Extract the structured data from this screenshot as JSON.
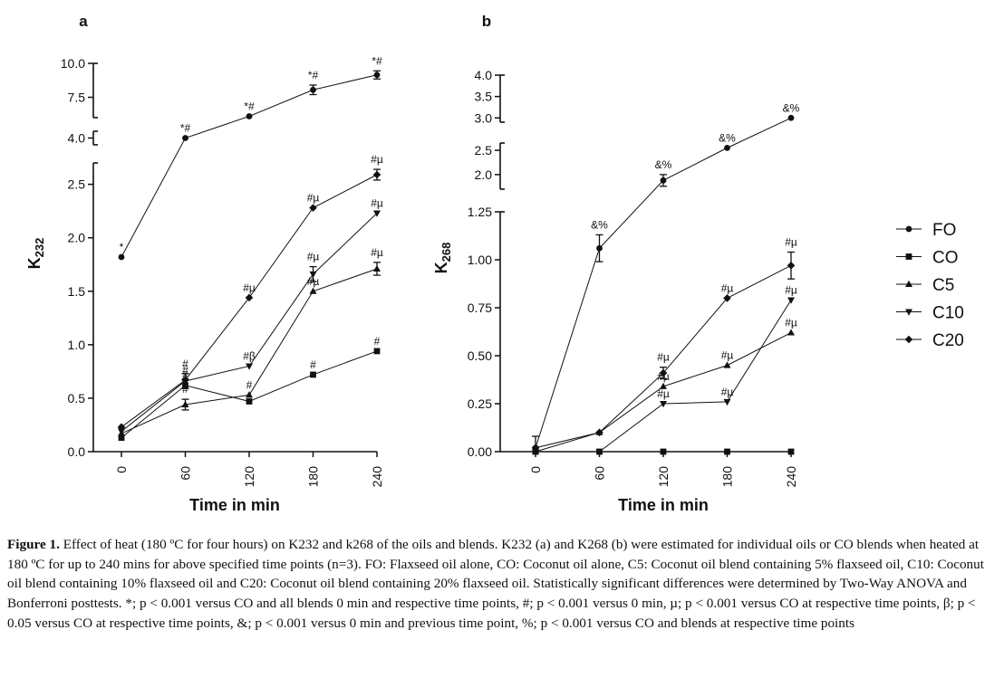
{
  "chart_data": [
    {
      "type": "line",
      "panel_label": "a",
      "xlabel": "Time in min",
      "ylabel": "K",
      "ylabel_sub": "232",
      "x_ticks": [
        "0",
        "60",
        "120",
        "180",
        "240"
      ],
      "x": [
        0,
        60,
        120,
        180,
        240
      ],
      "y_segments": [
        {
          "range": [
            0,
            2.7
          ],
          "ticks": [
            "0.0",
            "0.5",
            "1.0",
            "1.5",
            "2.0",
            "2.5"
          ]
        },
        {
          "range": [
            3.9,
            4.1
          ],
          "ticks": [
            "4.0"
          ]
        },
        {
          "range": [
            6.0,
            10.0
          ],
          "ticks": [
            "7.5",
            "10.0"
          ]
        }
      ],
      "series": [
        {
          "name": "FO",
          "marker": "circle",
          "values": [
            1.82,
            4.0,
            6.1,
            8.05,
            9.15
          ],
          "errors": [
            0,
            0,
            0,
            0.35,
            0.3
          ],
          "annotations": [
            "*",
            "*#",
            "*#",
            "*#",
            "*#"
          ]
        },
        {
          "name": "CO",
          "marker": "square",
          "values": [
            0.13,
            0.62,
            0.47,
            0.72,
            0.94
          ],
          "errors": [
            0,
            0,
            0,
            0,
            0
          ],
          "annotations": [
            "",
            "#",
            "",
            "#",
            "#"
          ]
        },
        {
          "name": "C5",
          "marker": "triangle-up",
          "values": [
            0.17,
            0.44,
            0.53,
            1.5,
            1.71
          ],
          "errors": [
            0,
            0.05,
            0,
            0,
            0.06
          ],
          "annotations": [
            "",
            "#",
            "#",
            "#µ",
            "#µ"
          ]
        },
        {
          "name": "C10",
          "marker": "triangle-down",
          "values": [
            0.19,
            0.66,
            0.8,
            1.66,
            2.23
          ],
          "errors": [
            0,
            0.07,
            0,
            0.07,
            0
          ],
          "annotations": [
            "",
            "#",
            "#β",
            "#µ",
            "#µ"
          ]
        },
        {
          "name": "C20",
          "marker": "diamond",
          "values": [
            0.23,
            0.67,
            1.44,
            2.28,
            2.59
          ],
          "errors": [
            0,
            0,
            0,
            0,
            0.05
          ],
          "annotations": [
            "",
            "#",
            "#µ",
            "#µ",
            "#µ"
          ]
        }
      ]
    },
    {
      "type": "line",
      "panel_label": "b",
      "xlabel": "Time in min",
      "ylabel": "K",
      "ylabel_sub": "268",
      "x_ticks": [
        "0",
        "60",
        "120",
        "180",
        "240"
      ],
      "x": [
        0,
        60,
        120,
        180,
        240
      ],
      "y_segments": [
        {
          "range": [
            0,
            1.25
          ],
          "ticks": [
            "0.00",
            "0.25",
            "0.50",
            "0.75",
            "1.00",
            "1.25"
          ]
        },
        {
          "range": [
            1.7,
            2.65
          ],
          "ticks": [
            "2.0",
            "2.5"
          ]
        },
        {
          "range": [
            2.9,
            4.0
          ],
          "ticks": [
            "3.0",
            "3.5",
            "4.0"
          ]
        }
      ],
      "series": [
        {
          "name": "FO",
          "marker": "circle",
          "values": [
            0.02,
            1.06,
            1.88,
            2.55,
            3.0
          ],
          "errors": [
            0,
            0.07,
            0.12,
            0,
            0
          ],
          "annotations": [
            "",
            "&%",
            "&%",
            "&%",
            "&%"
          ]
        },
        {
          "name": "CO",
          "marker": "square",
          "values": [
            0.0,
            0.0,
            0.0,
            0.0,
            0.0
          ],
          "errors": [
            0,
            0,
            0,
            0,
            0
          ],
          "annotations": [
            "",
            "",
            "",
            "",
            ""
          ]
        },
        {
          "name": "C5",
          "marker": "triangle-up",
          "values": [
            0.0,
            0.1,
            0.34,
            0.45,
            0.62
          ],
          "errors": [
            0,
            0,
            0,
            0,
            0
          ],
          "annotations": [
            "",
            "",
            "#µ",
            "#µ",
            "#µ"
          ]
        },
        {
          "name": "C10",
          "marker": "triangle-down",
          "values": [
            0.0,
            0.0,
            0.25,
            0.26,
            0.79
          ],
          "errors": [
            0,
            0,
            0,
            0,
            0
          ],
          "annotations": [
            "",
            "",
            "#µ",
            "#µ",
            "#µ"
          ]
        },
        {
          "name": "C20",
          "marker": "diamond",
          "values": [
            0.02,
            0.1,
            0.41,
            0.8,
            0.97
          ],
          "errors": [
            0.06,
            0,
            0.03,
            0,
            0.07
          ],
          "annotations": [
            "",
            "",
            "#µ",
            "#µ",
            "#µ"
          ]
        }
      ]
    }
  ],
  "legend": [
    "FO",
    "CO",
    "C5",
    "C10",
    "C20"
  ],
  "caption": {
    "figure_label": "Figure 1.",
    "text": " Effect of heat (180 ºC for four hours) on K232 and k268 of the oils and blends. K232 (a) and K268 (b) were estimated for individual oils or CO blends when heated at 180 ºC for up to 240 mins for above specified time points (n=3). FO: Flaxseed oil alone, CO: Coconut oil alone, C5: Coconut oil blend containing 5% flaxseed oil, C10: Coconut oil blend containing 10% flaxseed oil and C20: Coconut oil blend containing 20% flaxseed oil. Statistically significant differences were determined by Two-Way ANOVA and Bonferroni posttests. *; p < 0.001 versus CO and all blends 0 min and respective time points, #; p < 0.001 versus 0 min, µ; p < 0.001 versus CO at respective time points, β; p < 0.05 versus CO at respective time points, &; p < 0.001 versus 0 min and previous time point, %; p < 0.001 versus CO and blends at respective time points"
  }
}
